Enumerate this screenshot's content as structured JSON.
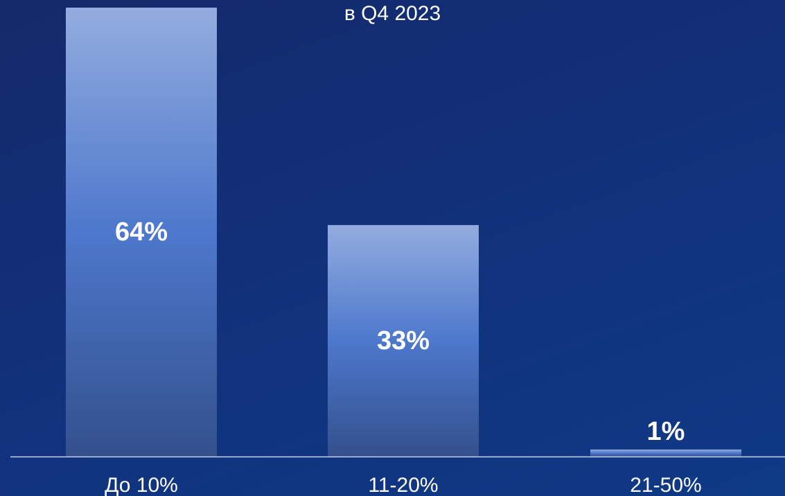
{
  "chart_data": {
    "type": "bar",
    "subtitle": "в Q4 2023",
    "categories": [
      "До 10%",
      "11-20%",
      "21-50%"
    ],
    "values": [
      64,
      33,
      1
    ],
    "value_labels": [
      "64%",
      "33%",
      "1%"
    ],
    "ylim": [
      0,
      64
    ],
    "grid": false,
    "legend": "none",
    "colors": {
      "bar_top": "#93acdf",
      "bar_mid": "#4d78cc",
      "bar_bottom": "#33508c",
      "axis": "#c8d2ee",
      "text": "#ffffff"
    }
  }
}
